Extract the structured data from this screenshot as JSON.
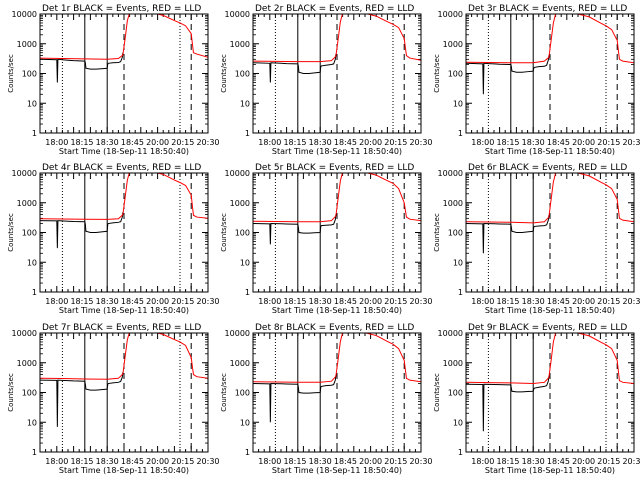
{
  "colors": {
    "events": "#000000",
    "lld": "#ff0000",
    "background": "#ffffff",
    "axes": "#000000"
  },
  "start_time_label": "Start Time (18-Sep-11 18:50:40)",
  "ylabel": "Counts/sec",
  "ytick_labels": [
    "1",
    "10",
    "100",
    "1000",
    "10000"
  ],
  "xtick_labels": [
    "18:00",
    "18:15",
    "18:30",
    "18:45",
    "20:00",
    "20:15",
    "20:30"
  ],
  "chart_data": [
    {
      "type": "line",
      "title": "Det 1r BLACK = Events, RED = LLD",
      "ylim": [
        1,
        10000
      ],
      "yscale": "log",
      "x_unit": "minutes",
      "xlim": [
        0,
        150
      ],
      "dotted": [
        20,
        125
      ],
      "solid": [
        40,
        60
      ],
      "dashed": [
        75,
        135
      ],
      "series": [
        {
          "name": "Events",
          "x": [
            0,
            15,
            15.5,
            16,
            20,
            25,
            30,
            40,
            40.5,
            41,
            45,
            50,
            55,
            60,
            60.5,
            61,
            65,
            70,
            72,
            73.5,
            74
          ],
          "y": [
            300,
            290,
            50,
            300,
            290,
            280,
            270,
            260,
            230,
            150,
            140,
            140,
            145,
            150,
            210,
            220,
            230,
            235,
            250,
            350,
            500
          ]
        },
        {
          "name": "LLD",
          "x": [
            0,
            20,
            40,
            60,
            70,
            74,
            76,
            78,
            80,
            85,
            90,
            100,
            110,
            120,
            125,
            130,
            135,
            137,
            140,
            150
          ],
          "y": [
            330,
            320,
            310,
            300,
            320,
            420,
            1500,
            6000,
            11000,
            13000,
            12500,
            11000,
            9000,
            6000,
            5000,
            4000,
            2200,
            500,
            450,
            350
          ]
        }
      ]
    },
    {
      "type": "line",
      "title": "Det 2r BLACK = Events, RED = LLD",
      "ylim": [
        1,
        10000
      ],
      "yscale": "log",
      "x_unit": "minutes",
      "xlim": [
        0,
        150
      ],
      "dotted": [
        20,
        125
      ],
      "solid": [
        40,
        60
      ],
      "dashed": [
        75,
        135
      ],
      "series": [
        {
          "name": "Events",
          "x": [
            0,
            15,
            15.5,
            16,
            20,
            25,
            30,
            40,
            40.5,
            41,
            45,
            50,
            55,
            60,
            60.5,
            61,
            65,
            70,
            72,
            73.5,
            74
          ],
          "y": [
            230,
            220,
            50,
            230,
            225,
            220,
            215,
            210,
            180,
            110,
            100,
            100,
            105,
            110,
            170,
            180,
            190,
            200,
            210,
            300,
            450
          ]
        },
        {
          "name": "LLD",
          "x": [
            0,
            20,
            40,
            60,
            70,
            74,
            76,
            78,
            80,
            85,
            90,
            100,
            110,
            120,
            125,
            130,
            135,
            137,
            140,
            150
          ],
          "y": [
            260,
            255,
            250,
            250,
            270,
            380,
            1400,
            5500,
            10500,
            12500,
            12000,
            10500,
            8500,
            5500,
            4500,
            3500,
            1500,
            400,
            330,
            280
          ]
        }
      ]
    },
    {
      "type": "line",
      "title": "Det 3r BLACK = Events, RED = LLD",
      "ylim": [
        1,
        10000
      ],
      "yscale": "log",
      "x_unit": "minutes",
      "xlim": [
        0,
        150
      ],
      "dotted": [
        20,
        125
      ],
      "solid": [
        40,
        60
      ],
      "dashed": [
        75,
        135
      ],
      "series": [
        {
          "name": "Events",
          "x": [
            0,
            15,
            15.5,
            16,
            20,
            25,
            30,
            40,
            40.5,
            41,
            45,
            50,
            55,
            60,
            60.5,
            61,
            65,
            70,
            72,
            73.5,
            74
          ],
          "y": [
            220,
            210,
            20,
            220,
            215,
            210,
            205,
            200,
            170,
            120,
            110,
            110,
            115,
            120,
            150,
            160,
            170,
            175,
            190,
            280,
            400
          ]
        },
        {
          "name": "LLD",
          "x": [
            0,
            20,
            40,
            60,
            70,
            74,
            76,
            78,
            80,
            85,
            90,
            100,
            110,
            120,
            125,
            130,
            135,
            137,
            140,
            150
          ],
          "y": [
            240,
            235,
            230,
            230,
            260,
            350,
            1300,
            5000,
            10000,
            12000,
            11500,
            10000,
            8000,
            5000,
            4000,
            3000,
            1300,
            300,
            260,
            230
          ]
        }
      ]
    },
    {
      "type": "line",
      "title": "Det 4r BLACK = Events, RED = LLD",
      "ylim": [
        1,
        10000
      ],
      "yscale": "log",
      "x_unit": "minutes",
      "xlim": [
        0,
        150
      ],
      "dotted": [
        20,
        125
      ],
      "solid": [
        40,
        60
      ],
      "dashed": [
        75,
        135
      ],
      "series": [
        {
          "name": "Events",
          "x": [
            0,
            15,
            15.5,
            16,
            20,
            25,
            30,
            40,
            40.5,
            41,
            45,
            50,
            55,
            60,
            60.5,
            61,
            65,
            70,
            72,
            73.5,
            74
          ],
          "y": [
            250,
            245,
            30,
            250,
            245,
            240,
            235,
            230,
            190,
            110,
            100,
            100,
            105,
            110,
            190,
            200,
            210,
            220,
            230,
            330,
            480
          ]
        },
        {
          "name": "LLD",
          "x": [
            0,
            20,
            40,
            60,
            70,
            74,
            76,
            78,
            80,
            85,
            90,
            100,
            110,
            120,
            125,
            130,
            135,
            137,
            140,
            150
          ],
          "y": [
            290,
            285,
            280,
            275,
            290,
            400,
            1500,
            5800,
            11000,
            13000,
            12500,
            11000,
            9000,
            5800,
            4800,
            3800,
            1800,
            380,
            330,
            300
          ]
        }
      ]
    },
    {
      "type": "line",
      "title": "Det 5r BLACK = Events, RED = LLD",
      "ylim": [
        1,
        10000
      ],
      "yscale": "log",
      "x_unit": "minutes",
      "xlim": [
        0,
        150
      ],
      "dotted": [
        20,
        125
      ],
      "solid": [
        40,
        60
      ],
      "dashed": [
        75,
        135
      ],
      "series": [
        {
          "name": "Events",
          "x": [
            0,
            15,
            15.5,
            16,
            20,
            25,
            30,
            40,
            40.5,
            41,
            45,
            50,
            55,
            60,
            60.5,
            61,
            65,
            70,
            72,
            73.5,
            74
          ],
          "y": [
            200,
            195,
            40,
            200,
            198,
            196,
            194,
            190,
            150,
            100,
            95,
            95,
            98,
            100,
            160,
            170,
            175,
            180,
            190,
            270,
            400
          ]
        },
        {
          "name": "LLD",
          "x": [
            0,
            20,
            40,
            60,
            70,
            74,
            76,
            78,
            80,
            85,
            90,
            100,
            110,
            120,
            125,
            130,
            135,
            137,
            140,
            150
          ],
          "y": [
            240,
            235,
            230,
            230,
            250,
            360,
            1400,
            5500,
            10500,
            12500,
            12000,
            10500,
            8500,
            5500,
            4500,
            3000,
            1000,
            330,
            280,
            250
          ]
        }
      ]
    },
    {
      "type": "line",
      "title": "Det 6r BLACK = Events, RED = LLD",
      "ylim": [
        1,
        10000
      ],
      "yscale": "log",
      "x_unit": "minutes",
      "xlim": [
        0,
        150
      ],
      "dotted": [
        20,
        125
      ],
      "solid": [
        40,
        60
      ],
      "dashed": [
        75,
        135
      ],
      "series": [
        {
          "name": "Events",
          "x": [
            0,
            15,
            15.5,
            16,
            20,
            25,
            30,
            40,
            40.5,
            41,
            45,
            50,
            55,
            60,
            60.5,
            61,
            65,
            70,
            72,
            73.5,
            74
          ],
          "y": [
            200,
            195,
            20,
            200,
            198,
            196,
            194,
            190,
            150,
            110,
            100,
            100,
            105,
            110,
            150,
            160,
            165,
            170,
            180,
            260,
            380
          ]
        },
        {
          "name": "LLD",
          "x": [
            0,
            20,
            40,
            60,
            70,
            74,
            76,
            78,
            80,
            85,
            90,
            100,
            110,
            120,
            125,
            130,
            135,
            137,
            140,
            150
          ],
          "y": [
            230,
            225,
            220,
            210,
            230,
            330,
            1300,
            5000,
            10000,
            12000,
            11500,
            10000,
            8000,
            5000,
            4000,
            3000,
            1300,
            300,
            260,
            230
          ]
        }
      ]
    },
    {
      "type": "line",
      "title": "Det 7r BLACK = Events, RED = LLD",
      "ylim": [
        1,
        10000
      ],
      "yscale": "log",
      "x_unit": "minutes",
      "xlim": [
        0,
        150
      ],
      "dotted": [
        20,
        125
      ],
      "solid": [
        40,
        60
      ],
      "dashed": [
        75,
        135
      ],
      "series": [
        {
          "name": "Events",
          "x": [
            0,
            15,
            15.5,
            16,
            20,
            25,
            30,
            40,
            40.5,
            41,
            45,
            50,
            55,
            60,
            60.5,
            61,
            65,
            70,
            72,
            73.5,
            74
          ],
          "y": [
            260,
            255,
            7,
            260,
            255,
            250,
            245,
            240,
            190,
            130,
            120,
            120,
            125,
            130,
            190,
            200,
            210,
            220,
            235,
            330,
            480
          ]
        },
        {
          "name": "LLD",
          "x": [
            0,
            20,
            40,
            60,
            70,
            74,
            76,
            78,
            80,
            85,
            90,
            100,
            110,
            120,
            125,
            130,
            135,
            137,
            140,
            150
          ],
          "y": [
            300,
            295,
            285,
            280,
            300,
            420,
            1600,
            6000,
            11000,
            13000,
            12500,
            11000,
            9000,
            6000,
            5000,
            3800,
            1500,
            400,
            340,
            300
          ]
        }
      ]
    },
    {
      "type": "line",
      "title": "Det 8r BLACK = Events, RED = LLD",
      "ylim": [
        1,
        10000
      ],
      "yscale": "log",
      "x_unit": "minutes",
      "xlim": [
        0,
        150
      ],
      "dotted": [
        20,
        125
      ],
      "solid": [
        40,
        60
      ],
      "dashed": [
        75,
        135
      ],
      "series": [
        {
          "name": "Events",
          "x": [
            0,
            15,
            15.5,
            16,
            20,
            25,
            30,
            40,
            40.5,
            41,
            45,
            50,
            55,
            60,
            60.5,
            61,
            65,
            70,
            72,
            73.5,
            74
          ],
          "y": [
            200,
            195,
            10,
            200,
            198,
            196,
            194,
            190,
            150,
            100,
            95,
            95,
            98,
            100,
            150,
            160,
            170,
            175,
            185,
            260,
            380
          ]
        },
        {
          "name": "LLD",
          "x": [
            0,
            20,
            40,
            60,
            70,
            74,
            76,
            78,
            80,
            85,
            90,
            100,
            110,
            120,
            125,
            130,
            135,
            137,
            140,
            150
          ],
          "y": [
            230,
            225,
            220,
            220,
            240,
            350,
            1300,
            5200,
            10200,
            12200,
            11700,
            10200,
            8200,
            5200,
            4200,
            3000,
            1200,
            300,
            260,
            230
          ]
        }
      ]
    },
    {
      "type": "line",
      "title": "Det 9r BLACK = Events, RED = LLD",
      "ylim": [
        1,
        10000
      ],
      "yscale": "log",
      "x_unit": "minutes",
      "xlim": [
        0,
        150
      ],
      "dotted": [
        20,
        125
      ],
      "solid": [
        40,
        60
      ],
      "dashed": [
        75,
        135
      ],
      "series": [
        {
          "name": "Events",
          "x": [
            0,
            15,
            15.5,
            16,
            20,
            25,
            30,
            40,
            40.5,
            41,
            45,
            50,
            55,
            60,
            60.5,
            61,
            65,
            70,
            72,
            73.5,
            74
          ],
          "y": [
            190,
            185,
            5,
            190,
            188,
            186,
            184,
            180,
            140,
            110,
            105,
            105,
            108,
            110,
            130,
            140,
            150,
            160,
            170,
            240,
            350
          ]
        },
        {
          "name": "LLD",
          "x": [
            0,
            20,
            40,
            60,
            70,
            74,
            76,
            78,
            80,
            85,
            90,
            100,
            110,
            120,
            125,
            130,
            135,
            137,
            140,
            150
          ],
          "y": [
            220,
            215,
            210,
            200,
            220,
            320,
            1200,
            5000,
            10000,
            12000,
            11500,
            10000,
            8000,
            5000,
            4000,
            3000,
            1200,
            250,
            220,
            200
          ]
        }
      ]
    }
  ]
}
